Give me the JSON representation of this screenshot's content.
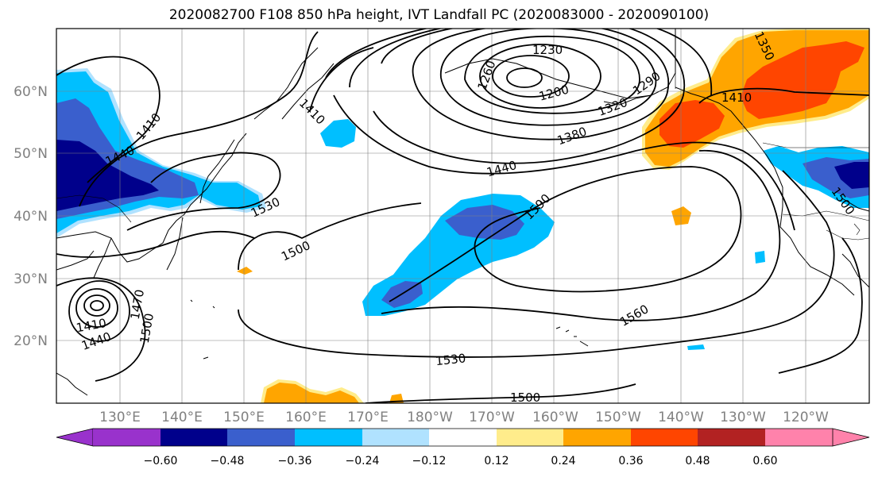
{
  "title": "2020082700 F108 850 hPa height, IVT Landfall PC (2020083000 - 2020090100)",
  "lat_labels": [
    "60°N",
    "50°N",
    "40°N",
    "30°N",
    "20°N"
  ],
  "lon_labels": [
    "130°E",
    "140°E",
    "150°E",
    "160°E",
    "170°E",
    "180°W",
    "170°W",
    "160°W",
    "150°W",
    "140°W",
    "130°W",
    "120°W"
  ],
  "contour_labels": [
    "1230",
    "1260",
    "1200",
    "1290",
    "1320",
    "1380",
    "1350",
    "1410",
    "1410",
    "1440",
    "1410",
    "1440",
    "1530",
    "1500",
    "1590",
    "1560",
    "1530",
    "1500",
    "1410",
    "1440",
    "1470",
    "1500",
    "1500"
  ],
  "colorbar": {
    "ticks": [
      "−0.60",
      "−0.48",
      "−0.36",
      "−0.24",
      "−0.12",
      "0.12",
      "0.24",
      "0.36",
      "0.48",
      "0.60"
    ],
    "colors": [
      "#9932cc",
      "#00008b",
      "#3a5fcd",
      "#00bfff",
      "#b0e2ff",
      "#ffffff",
      "#ffec8b",
      "#ffa500",
      "#ff4500",
      "#b22222",
      "#ff82ab"
    ]
  }
}
